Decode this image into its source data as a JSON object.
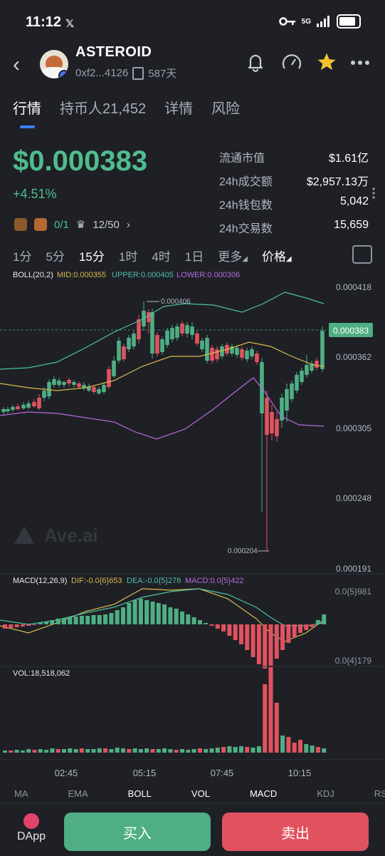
{
  "status": {
    "time": "11:12",
    "x_icon": "x-logo-icon",
    "network": "5G"
  },
  "header": {
    "name": "ASTEROID",
    "address": "0xf2...4126",
    "age": "587天"
  },
  "tabs": [
    "行情",
    "持币人21,452",
    "详情",
    "风险"
  ],
  "price": {
    "value": "$0.000383",
    "change": "+4.51%"
  },
  "stats": [
    {
      "label": "流通市值",
      "value": "$1.61亿"
    },
    {
      "label": "24h成交额",
      "value": "$2,957.13万"
    },
    {
      "label": "24h钱包数",
      "value": "5,042"
    },
    {
      "label": "24h交易数",
      "value": "15,659"
    }
  ],
  "chips": {
    "ratio1": "0/1",
    "ratio2": "12/50"
  },
  "intervals": [
    "1分",
    "5分",
    "15分",
    "1时",
    "4时",
    "1日",
    "更多",
    "价格"
  ],
  "chart": {
    "boll_legend": "BOLL(20,2)",
    "mid": "MID:0.000355",
    "upper": "UPPER:0.000405",
    "lower": "LOWER:0.000306",
    "y_labels": [
      "0.000418",
      "0.000362",
      "0.000305",
      "0.000248",
      "0.000191"
    ],
    "current_price_tag": "0.000383",
    "high_label": "0.000406",
    "low_label": "0.000204",
    "watermark": "Ave.ai",
    "macd_legend": "MACD(12,26,9)",
    "dif": "DIF:-0.0{6}653",
    "dea": "DEA:-0.0{5}276",
    "macd": "MACD:0.0{5}422",
    "macd_top": "0.0{5}981",
    "macd_bottom": "0.0{4}179",
    "vol_legend": "VOL:18,518,062",
    "x_labels": [
      "02:45",
      "05:15",
      "07:45",
      "10:15"
    ],
    "colors": {
      "up": "#4fae84",
      "down": "#e0525f",
      "mid": "#d9b84a",
      "upper": "#4fbfa5",
      "lower": "#b46cd8"
    }
  },
  "bottom_tabs": [
    "MA",
    "EMA",
    "BOLL",
    "VOL",
    "MACD",
    "KDJ",
    "RSI"
  ],
  "bottom": {
    "dapp": "DApp",
    "buy": "买入",
    "sell": "卖出"
  }
}
